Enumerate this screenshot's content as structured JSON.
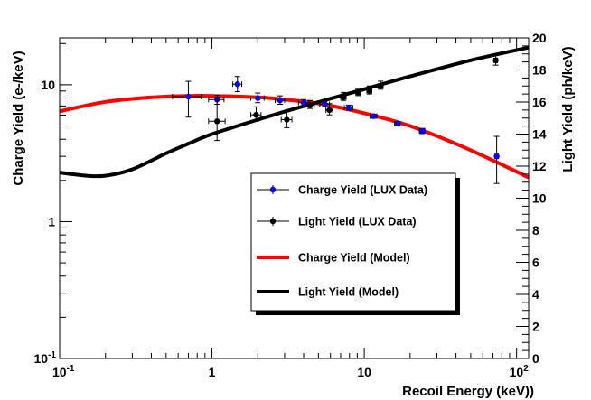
{
  "chart_data": {
    "type": "scatter",
    "title": "",
    "xlabel": "Recoil Energy (keV))",
    "ylabel": "Charge Yield (e-/keV)",
    "y2label": "Light Yield (ph/keV)",
    "x_scale": "log",
    "y_scale": "log",
    "xlim": [
      0.1,
      120
    ],
    "ylim": [
      0.1,
      22
    ],
    "y2lim": [
      0,
      20
    ],
    "x_ticks": [
      {
        "value": 0.1,
        "base": "10",
        "exp": "-1"
      },
      {
        "value": 1,
        "label": "1"
      },
      {
        "value": 10,
        "label": "10"
      },
      {
        "value": 100,
        "base": "10",
        "exp": "2"
      }
    ],
    "y_ticks": [
      {
        "value": 0.1,
        "base": "10",
        "exp": "-1"
      },
      {
        "value": 1,
        "label": "1"
      },
      {
        "value": 10,
        "label": "10"
      }
    ],
    "y2_ticks": [
      "0",
      "2",
      "4",
      "6",
      "8",
      "10",
      "12",
      "14",
      "16",
      "18",
      "20"
    ],
    "legend_position": "center-right",
    "legend": [
      {
        "label": "Charge Yield (LUX Data)",
        "kind": "marker",
        "color": "#0000ff"
      },
      {
        "label": "Light Yield (LUX Data)",
        "kind": "marker",
        "color": "#000000"
      },
      {
        "label": "Charge Yield (Model)",
        "kind": "line",
        "color": "#ff0000"
      },
      {
        "label": "Light Yield (Model)",
        "kind": "line",
        "color": "#000000"
      }
    ],
    "series": [
      {
        "name": "Charge Yield (LUX Data)",
        "axis": "left",
        "color": "#0000ff",
        "points": [
          {
            "x": 0.7,
            "y": 8.2,
            "xerr": [
              0.55,
              0.85
            ],
            "yerr": [
              5.8,
              10.6
            ]
          },
          {
            "x": 1.08,
            "y": 7.8,
            "xerr": [
              0.95,
              1.2
            ],
            "yerr": [
              7.2,
              8.4
            ]
          },
          {
            "x": 1.47,
            "y": 10.1,
            "xerr": [
              1.37,
              1.57
            ],
            "yerr": [
              8.9,
              11.5
            ]
          },
          {
            "x": 2.0,
            "y": 8.0,
            "xerr": [
              1.8,
              2.2
            ],
            "yerr": [
              7.4,
              8.7
            ]
          },
          {
            "x": 2.8,
            "y": 7.7,
            "xerr": [
              2.6,
              3.0
            ],
            "yerr": [
              7.2,
              8.3
            ]
          },
          {
            "x": 4.0,
            "y": 7.4,
            "xerr": [
              3.7,
              4.3
            ],
            "yerr": [
              7.0,
              7.8
            ]
          },
          {
            "x": 5.5,
            "y": 7.2,
            "xerr": [
              5.1,
              5.9
            ],
            "yerr": [
              6.9,
              7.5
            ]
          },
          {
            "x": 7.9,
            "y": 6.8,
            "xerr": [
              7.4,
              8.4
            ],
            "yerr": [
              6.5,
              7.1
            ]
          },
          {
            "x": 11.5,
            "y": 5.9,
            "xerr": [
              10.9,
              12.1
            ],
            "yerr": [
              5.7,
              6.1
            ]
          },
          {
            "x": 16.5,
            "y": 5.2,
            "xerr": [
              15.8,
              17.2
            ],
            "yerr": [
              5.0,
              5.4
            ]
          },
          {
            "x": 24.0,
            "y": 4.6,
            "xerr": [
              23.0,
              25.0
            ],
            "yerr": [
              4.4,
              4.8
            ]
          },
          {
            "x": 74.0,
            "y": 3.0,
            "xerr": [
              72.0,
              76.0
            ],
            "yerr": [
              1.9,
              4.2
            ]
          }
        ]
      },
      {
        "name": "Light Yield (LUX Data)",
        "axis": "right",
        "color": "#000000",
        "points": [
          {
            "x": 1.08,
            "y": 14.8,
            "xerr": [
              0.95,
              1.22
            ],
            "yerr": [
              13.6,
              16.3
            ]
          },
          {
            "x": 1.95,
            "y": 15.2,
            "xerr": [
              1.8,
              2.1
            ],
            "yerr": [
              14.8,
              15.7
            ]
          },
          {
            "x": 3.1,
            "y": 14.9,
            "xerr": [
              2.85,
              3.35
            ],
            "yerr": [
              14.4,
              15.4
            ]
          },
          {
            "x": 4.4,
            "y": 15.8,
            "xerr": [
              4.1,
              4.7
            ],
            "yerr": [
              15.6,
              16.1
            ]
          },
          {
            "x": 5.9,
            "y": 15.5,
            "xerr": [
              5.6,
              6.2
            ],
            "yerr": [
              15.2,
              15.9
            ]
          },
          {
            "x": 7.3,
            "y": 16.3,
            "xerr": [
              7.0,
              7.6
            ],
            "yerr": [
              16.1,
              16.6
            ]
          },
          {
            "x": 9.1,
            "y": 16.6,
            "xerr": [
              8.8,
              9.4
            ],
            "yerr": [
              16.4,
              16.8
            ]
          },
          {
            "x": 10.8,
            "y": 16.7,
            "xerr": [
              10.4,
              11.2
            ],
            "yerr": [
              16.5,
              17.0
            ]
          },
          {
            "x": 12.8,
            "y": 17.0,
            "xerr": [
              12.3,
              13.3
            ],
            "yerr": [
              16.8,
              17.3
            ]
          },
          {
            "x": 73.0,
            "y": 18.6,
            "xerr": [
              71.0,
              75.0
            ],
            "yerr": [
              18.3,
              18.9
            ]
          }
        ]
      },
      {
        "name": "Charge Yield (Model)",
        "axis": "left",
        "color": "#ff0000",
        "line": true,
        "points": [
          {
            "x": 0.1,
            "y": 6.4
          },
          {
            "x": 0.2,
            "y": 7.5
          },
          {
            "x": 0.4,
            "y": 8.1
          },
          {
            "x": 0.7,
            "y": 8.3
          },
          {
            "x": 1.0,
            "y": 8.3
          },
          {
            "x": 2.0,
            "y": 8.1
          },
          {
            "x": 3.0,
            "y": 7.8
          },
          {
            "x": 5.0,
            "y": 7.3
          },
          {
            "x": 10.0,
            "y": 6.2
          },
          {
            "x": 20.0,
            "y": 5.0
          },
          {
            "x": 40.0,
            "y": 3.7
          },
          {
            "x": 70.0,
            "y": 2.8
          },
          {
            "x": 120.0,
            "y": 2.1
          }
        ]
      },
      {
        "name": "Light Yield (Model)",
        "axis": "right",
        "color": "#000000",
        "line": true,
        "points": [
          {
            "x": 0.1,
            "y": 11.6
          },
          {
            "x": 0.15,
            "y": 11.4
          },
          {
            "x": 0.2,
            "y": 11.4
          },
          {
            "x": 0.3,
            "y": 11.8
          },
          {
            "x": 0.5,
            "y": 12.8
          },
          {
            "x": 0.7,
            "y": 13.4
          },
          {
            "x": 1.0,
            "y": 14.0
          },
          {
            "x": 2.0,
            "y": 14.9
          },
          {
            "x": 3.0,
            "y": 15.4
          },
          {
            "x": 5.0,
            "y": 16.0
          },
          {
            "x": 10.0,
            "y": 16.8
          },
          {
            "x": 20.0,
            "y": 17.6
          },
          {
            "x": 50.0,
            "y": 18.6
          },
          {
            "x": 120.0,
            "y": 19.4
          }
        ]
      }
    ]
  }
}
